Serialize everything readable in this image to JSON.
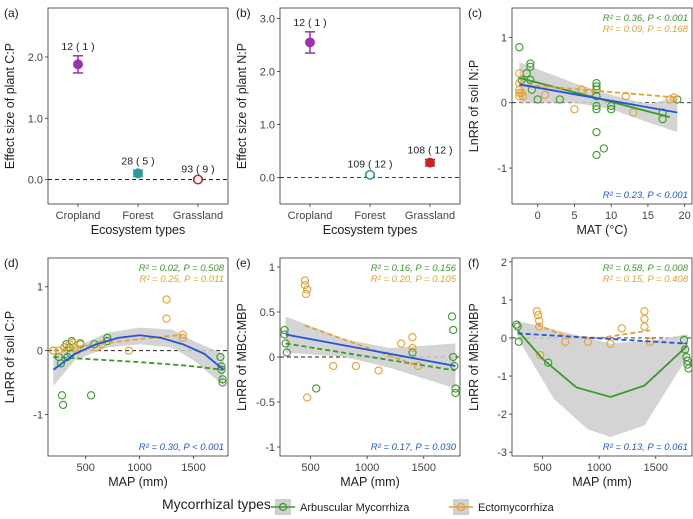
{
  "legend": {
    "title": "Mycorrhizal types",
    "items": [
      {
        "label": "Arbuscular Mycorrhiza",
        "color": "#3a9a2a"
      },
      {
        "label": "Ectomycorrhiza",
        "color": "#e8a030"
      }
    ]
  },
  "colors": {
    "am": "#3a9a2a",
    "em": "#e8a030",
    "all": "#2255dd",
    "crop": "#9b30b0",
    "forest": "#2a9a9a",
    "grass": "#cc2222",
    "band": "#cccccc"
  },
  "chart_data": [
    {
      "panel": "(a)",
      "type": "scatter",
      "ylabel": "Effect size of plant C:P",
      "xlabel": "Ecosystem types",
      "categories": [
        "Cropland",
        "Forest",
        "Grassland"
      ],
      "ylim": [
        -0.4,
        2.8
      ],
      "yticks": [
        0.0,
        1.0,
        2.0
      ],
      "points": [
        {
          "category": "Cropland",
          "value": 1.88,
          "lo": 1.74,
          "hi": 2.02,
          "label": "12 ( 1 )",
          "color": "#9b30b0",
          "open": false
        },
        {
          "category": "Forest",
          "value": 0.1,
          "lo": 0.05,
          "hi": 0.15,
          "label": "28 ( 5 )",
          "color": "#2a9a9a",
          "open": false
        },
        {
          "category": "Grassland",
          "value": 0.0,
          "lo": -0.02,
          "hi": 0.02,
          "label": "93 ( 9 )",
          "color": "#cc2222",
          "open": true
        }
      ]
    },
    {
      "panel": "(b)",
      "type": "scatter",
      "ylabel": "Effect size of plant N:P",
      "xlabel": "Ecosystem types",
      "categories": [
        "Cropland",
        "Forest",
        "Grassland"
      ],
      "ylim": [
        -0.5,
        3.2
      ],
      "yticks": [
        0.0,
        1.0,
        2.0,
        3.0
      ],
      "points": [
        {
          "category": "Cropland",
          "value": 2.55,
          "lo": 2.35,
          "hi": 2.75,
          "label": "12 ( 1 )",
          "color": "#9b30b0",
          "open": false
        },
        {
          "category": "Forest",
          "value": 0.05,
          "lo": 0.02,
          "hi": 0.08,
          "label": "109 ( 12 )",
          "color": "#2a9a9a",
          "open": true
        },
        {
          "category": "Grassland",
          "value": 0.28,
          "lo": 0.22,
          "hi": 0.34,
          "label": "108 ( 12 )",
          "color": "#cc2222",
          "open": false
        }
      ]
    },
    {
      "panel": "(c)",
      "type": "scatter",
      "ylabel": "LnRR of soil N:P",
      "xlabel": "MAT (°C)",
      "xlim": [
        -3.5,
        21
      ],
      "ylim": [
        -1.55,
        1.45
      ],
      "xticks": [
        0,
        5,
        10,
        15,
        20
      ],
      "yticks": [
        -1,
        0,
        1
      ],
      "stats": [
        {
          "text": "R² = 0.36, P < 0.001",
          "color": "#3a9a2a",
          "pos": "top"
        },
        {
          "text": "R² = 0.09, P = 0.168",
          "color": "#e8a030",
          "pos": "top"
        },
        {
          "text": "R² = 0.23, P < 0.001",
          "color": "#2255dd",
          "pos": "bottom"
        }
      ],
      "am_points": [
        [
          -2.5,
          0.85
        ],
        [
          -2.2,
          0.35
        ],
        [
          -1.5,
          0.45
        ],
        [
          -1,
          0.55
        ],
        [
          -1,
          0.6
        ],
        [
          -1,
          0.35
        ],
        [
          -0.8,
          0.2
        ],
        [
          0,
          0.05
        ],
        [
          3,
          0.05
        ],
        [
          8,
          0.3
        ],
        [
          8,
          0.2
        ],
        [
          8,
          0.1
        ],
        [
          8,
          -0.05
        ],
        [
          8,
          -0.1
        ],
        [
          8,
          0.25
        ],
        [
          8,
          -0.45
        ],
        [
          8,
          -0.8
        ],
        [
          9,
          -0.7
        ],
        [
          10,
          -0.05
        ],
        [
          10,
          -0.1
        ],
        [
          17,
          -0.25
        ],
        [
          17,
          -0.15
        ],
        [
          19,
          0.05
        ]
      ],
      "em_points": [
        [
          -2.5,
          0.45
        ],
        [
          -2.5,
          0.3
        ],
        [
          -2.5,
          0.2
        ],
        [
          -2.5,
          0.15
        ],
        [
          -2.5,
          0.1
        ],
        [
          -2.2,
          0.15
        ],
        [
          -2,
          0.1
        ],
        [
          1,
          0.12
        ],
        [
          5,
          -0.1
        ],
        [
          6,
          0.2
        ],
        [
          7,
          0.15
        ],
        [
          12,
          0.1
        ],
        [
          13,
          -0.15
        ],
        [
          18,
          0.05
        ],
        [
          18.5,
          0.08
        ]
      ],
      "lines": [
        {
          "series": "am",
          "dash": false,
          "pts": [
            [
              -2.5,
              0.38
            ],
            [
              18,
              -0.22
            ]
          ]
        },
        {
          "series": "em",
          "dash": true,
          "pts": [
            [
              -2.5,
              0.28
            ],
            [
              19,
              0.08
            ]
          ]
        },
        {
          "series": "all",
          "dash": false,
          "pts": [
            [
              -2.5,
              0.28
            ],
            [
              19,
              -0.15
            ]
          ]
        }
      ],
      "band": {
        "upper": [
          [
            -2.5,
            0.62
          ],
          [
            5,
            0.3
          ],
          [
            10,
            0.12
          ],
          [
            15,
            -0.02
          ],
          [
            19,
            0.08
          ]
        ],
        "lower": [
          [
            -2.5,
            0.0
          ],
          [
            5,
            0.0
          ],
          [
            10,
            -0.1
          ],
          [
            15,
            -0.3
          ],
          [
            19,
            -0.45
          ]
        ]
      }
    },
    {
      "panel": "(d)",
      "type": "scatter",
      "ylabel": "LnRR of soil C:P",
      "xlabel": "MAP (mm)",
      "xlim": [
        150,
        1820
      ],
      "ylim": [
        -1.65,
        1.45
      ],
      "xticks": [
        500,
        1000,
        1500
      ],
      "yticks": [
        -1,
        0,
        1
      ],
      "stats": [
        {
          "text": "R² = 0.02, P = 0.508",
          "color": "#3a9a2a",
          "pos": "top"
        },
        {
          "text": "R² = 0.25, P = 0.011",
          "color": "#e8a030",
          "pos": "top"
        },
        {
          "text": "R² = 0.30, P < 0.001",
          "color": "#2255dd",
          "pos": "bottom"
        }
      ],
      "am_points": [
        [
          200,
          0
        ],
        [
          250,
          -0.1
        ],
        [
          270,
          -0.2
        ],
        [
          280,
          -0.7
        ],
        [
          290,
          -0.85
        ],
        [
          300,
          0.05
        ],
        [
          320,
          0.1
        ],
        [
          330,
          -0.1
        ],
        [
          350,
          0.05
        ],
        [
          360,
          -0.05
        ],
        [
          370,
          0.15
        ],
        [
          450,
          0.1
        ],
        [
          550,
          -0.7
        ],
        [
          580,
          0.1
        ],
        [
          700,
          0.15
        ],
        [
          700,
          0.2
        ],
        [
          1750,
          -0.1
        ],
        [
          1760,
          -0.25
        ],
        [
          1760,
          -0.3
        ],
        [
          1770,
          -0.45
        ],
        [
          1770,
          -0.5
        ]
      ],
      "em_points": [
        [
          200,
          0
        ],
        [
          250,
          0
        ],
        [
          300,
          0.05
        ],
        [
          350,
          0.1
        ],
        [
          380,
          0.12
        ],
        [
          400,
          0.05
        ],
        [
          420,
          0.0
        ],
        [
          450,
          0.12
        ],
        [
          600,
          0.05
        ],
        [
          650,
          0.1
        ],
        [
          900,
          0.0
        ],
        [
          1250,
          0.5
        ],
        [
          1250,
          0.8
        ],
        [
          1400,
          0.2
        ],
        [
          1400,
          0.25
        ]
      ],
      "lines": [
        {
          "series": "am",
          "dash": true,
          "pts": [
            [
              200,
              -0.1
            ],
            [
              600,
              -0.14
            ],
            [
              1000,
              -0.18
            ],
            [
              1400,
              -0.23
            ],
            [
              1780,
              -0.3
            ]
          ]
        },
        {
          "series": "em",
          "dash": true,
          "pts": [
            [
              200,
              0.0
            ],
            [
              400,
              0.05
            ],
            [
              700,
              0.12
            ],
            [
              1000,
              0.18
            ],
            [
              1400,
              0.25
            ]
          ]
        },
        {
          "series": "all",
          "dash": false,
          "pts": [
            [
              200,
              -0.3
            ],
            [
              400,
              -0.05
            ],
            [
              600,
              0.1
            ],
            [
              800,
              0.2
            ],
            [
              1000,
              0.24
            ],
            [
              1200,
              0.2
            ],
            [
              1400,
              0.1
            ],
            [
              1600,
              -0.05
            ],
            [
              1780,
              -0.3
            ]
          ]
        }
      ],
      "band": {
        "upper": [
          [
            200,
            -0.05
          ],
          [
            400,
            0.05
          ],
          [
            700,
            0.28
          ],
          [
            1000,
            0.36
          ],
          [
            1300,
            0.33
          ],
          [
            1500,
            0.15
          ],
          [
            1780,
            -0.05
          ]
        ],
        "lower": [
          [
            200,
            -0.55
          ],
          [
            400,
            -0.15
          ],
          [
            700,
            0.05
          ],
          [
            1000,
            0.1
          ],
          [
            1300,
            0.05
          ],
          [
            1500,
            -0.15
          ],
          [
            1780,
            -0.55
          ]
        ]
      }
    },
    {
      "panel": "(e)",
      "type": "scatter",
      "ylabel": "LnRR of MBC:MBP",
      "xlabel": "MAP (mm)",
      "xlim": [
        230,
        1820
      ],
      "ylim": [
        -1.1,
        1.1
      ],
      "xticks": [
        500,
        1000,
        1500
      ],
      "yticks": [
        -1.0,
        -0.5,
        0.0,
        0.5,
        1.0
      ],
      "stats": [
        {
          "text": "R² = 0.16, P = 0.156",
          "color": "#3a9a2a",
          "pos": "top"
        },
        {
          "text": "R² = 0.20, P = 0.105",
          "color": "#e8a030",
          "pos": "top"
        },
        {
          "text": "R² = 0.17, P = 0.030",
          "color": "#2255dd",
          "pos": "bottom"
        }
      ],
      "am_points": [
        [
          270,
          0.3
        ],
        [
          270,
          0.25
        ],
        [
          280,
          0.15
        ],
        [
          290,
          0.05
        ],
        [
          550,
          -0.35
        ],
        [
          1400,
          0.05
        ],
        [
          1750,
          0.45
        ],
        [
          1760,
          0.3
        ],
        [
          1760,
          0.0
        ],
        [
          1770,
          -0.1
        ],
        [
          1780,
          -0.35
        ],
        [
          1780,
          -0.4
        ]
      ],
      "em_points": [
        [
          450,
          0.85
        ],
        [
          450,
          0.8
        ],
        [
          460,
          0.7
        ],
        [
          470,
          0.75
        ],
        [
          470,
          -0.45
        ],
        [
          700,
          -0.1
        ],
        [
          900,
          -0.1
        ],
        [
          1100,
          -0.15
        ],
        [
          1300,
          0.15
        ],
        [
          1400,
          0.22
        ],
        [
          1400,
          0.1
        ],
        [
          1450,
          -0.1
        ]
      ],
      "lines": [
        {
          "series": "am",
          "dash": true,
          "pts": [
            [
              280,
              0.15
            ],
            [
              1780,
              -0.15
            ]
          ]
        },
        {
          "series": "em",
          "dash": true,
          "pts": [
            [
              450,
              0.35
            ],
            [
              1450,
              -0.1
            ]
          ]
        },
        {
          "series": "all",
          "dash": false,
          "pts": [
            [
              280,
              0.25
            ],
            [
              1780,
              -0.1
            ]
          ]
        }
      ],
      "band": {
        "upper": [
          [
            280,
            0.45
          ],
          [
            800,
            0.2
          ],
          [
            1200,
            0.1
          ],
          [
            1780,
            0.15
          ]
        ],
        "lower": [
          [
            280,
            0.05
          ],
          [
            800,
            0.0
          ],
          [
            1200,
            -0.12
          ],
          [
            1780,
            -0.35
          ]
        ]
      }
    },
    {
      "panel": "(f)",
      "type": "scatter",
      "ylabel": "LnRR of MBN:MBP",
      "xlabel": "MAP (mm)",
      "xlim": [
        230,
        1820
      ],
      "ylim": [
        -3.1,
        2.1
      ],
      "xticks": [
        500,
        1000,
        1500
      ],
      "yticks": [
        -3,
        -2,
        -1,
        0,
        1,
        2
      ],
      "stats": [
        {
          "text": "R² = 0.58, P = 0.008",
          "color": "#3a9a2a",
          "pos": "top"
        },
        {
          "text": "R² = 0.15, P = 0.408",
          "color": "#e8a030",
          "pos": "top"
        },
        {
          "text": "R² = 0.13, P = 0.061",
          "color": "#2255dd",
          "pos": "bottom"
        }
      ],
      "am_points": [
        [
          270,
          0.35
        ],
        [
          280,
          0.3
        ],
        [
          290,
          -0.1
        ],
        [
          550,
          -0.65
        ],
        [
          1750,
          -0.05
        ],
        [
          1760,
          -0.3
        ],
        [
          1770,
          -0.5
        ],
        [
          1780,
          -0.6
        ],
        [
          1780,
          -0.7
        ],
        [
          1790,
          -0.8
        ]
      ],
      "em_points": [
        [
          450,
          0.7
        ],
        [
          460,
          0.6
        ],
        [
          470,
          0.45
        ],
        [
          470,
          0.3
        ],
        [
          480,
          -0.45
        ],
        [
          700,
          -0.1
        ],
        [
          900,
          -0.1
        ],
        [
          1100,
          -0.15
        ],
        [
          1200,
          0.25
        ],
        [
          1400,
          0.3
        ],
        [
          1400,
          0.5
        ],
        [
          1400,
          0.7
        ],
        [
          1450,
          -0.1
        ]
      ],
      "lines": [
        {
          "series": "am",
          "dash": false,
          "pts": [
            [
              280,
              0.2
            ],
            [
              500,
              -0.55
            ],
            [
              800,
              -1.3
            ],
            [
              1100,
              -1.55
            ],
            [
              1400,
              -1.25
            ],
            [
              1780,
              -0.2
            ]
          ]
        },
        {
          "series": "em",
          "dash": true,
          "pts": [
            [
              450,
              0.35
            ],
            [
              700,
              0.05
            ],
            [
              1000,
              0.0
            ],
            [
              1450,
              0.2
            ]
          ]
        },
        {
          "series": "all",
          "dash": true,
          "pts": [
            [
              280,
              0.12
            ],
            [
              1780,
              -0.15
            ]
          ]
        }
      ],
      "band": {
        "upper": [
          [
            280,
            0.45
          ],
          [
            700,
            0.15
          ],
          [
            1100,
            -0.15
          ],
          [
            1500,
            -0.05
          ],
          [
            1780,
            0.1
          ]
        ],
        "lower": [
          [
            280,
            0.0
          ],
          [
            600,
            -1.6
          ],
          [
            900,
            -2.4
          ],
          [
            1100,
            -2.6
          ],
          [
            1400,
            -2.3
          ],
          [
            1780,
            -0.5
          ]
        ]
      }
    }
  ]
}
